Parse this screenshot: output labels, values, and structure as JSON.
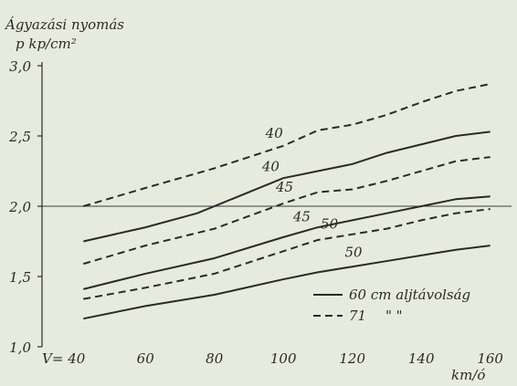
{
  "chart_data": {
    "type": "line",
    "ylabel_line1": "Ágyazási nyomás",
    "ylabel_line2": "p kp/cm²",
    "x_prefix": "V=",
    "xlabel": "km/ó",
    "xlim": [
      30,
      163
    ],
    "ylim": [
      1.0,
      3.0
    ],
    "x_ticks": [
      40,
      60,
      80,
      100,
      120,
      140,
      160
    ],
    "y_ticks": [
      "1,0",
      "1,5",
      "2,0",
      "2,5",
      "3,0"
    ],
    "y_tick_values": [
      1.0,
      1.5,
      2.0,
      2.5,
      3.0
    ],
    "reference_line_y": 2.0,
    "series": [
      {
        "label": "40",
        "style": "dashed",
        "x": [
          42,
          60,
          80,
          100,
          110,
          120,
          130,
          140,
          150,
          160
        ],
        "y": [
          2.0,
          2.13,
          2.27,
          2.43,
          2.54,
          2.58,
          2.65,
          2.74,
          2.82,
          2.87
        ]
      },
      {
        "label": "40",
        "style": "solid",
        "x": [
          42,
          60,
          75,
          90,
          100,
          110,
          120,
          130,
          140,
          150,
          160
        ],
        "y": [
          1.75,
          1.85,
          1.95,
          2.1,
          2.2,
          2.25,
          2.3,
          2.38,
          2.44,
          2.5,
          2.53
        ]
      },
      {
        "label": "45",
        "style": "dashed",
        "x": [
          42,
          60,
          80,
          100,
          110,
          120,
          130,
          140,
          150,
          160
        ],
        "y": [
          1.59,
          1.72,
          1.84,
          2.02,
          2.1,
          2.12,
          2.18,
          2.25,
          2.32,
          2.35
        ]
      },
      {
        "label": "45",
        "style": "solid",
        "x": [
          42,
          60,
          80,
          100,
          110,
          120,
          130,
          140,
          150,
          160
        ],
        "y": [
          1.41,
          1.52,
          1.63,
          1.78,
          1.85,
          1.9,
          1.95,
          2.0,
          2.05,
          2.07
        ]
      },
      {
        "label": "50",
        "style": "dashed",
        "x": [
          42,
          60,
          80,
          100,
          110,
          120,
          130,
          140,
          150,
          160
        ],
        "y": [
          1.34,
          1.42,
          1.52,
          1.68,
          1.76,
          1.8,
          1.84,
          1.9,
          1.95,
          1.98
        ]
      },
      {
        "label": "50",
        "style": "solid",
        "x": [
          42,
          60,
          80,
          100,
          110,
          120,
          130,
          140,
          150,
          160
        ],
        "y": [
          1.2,
          1.29,
          1.37,
          1.48,
          1.53,
          1.57,
          1.61,
          1.65,
          1.69,
          1.72
        ]
      }
    ],
    "legend": [
      {
        "style": "solid",
        "label": "60 cm aljtávolság"
      },
      {
        "style": "dashed",
        "label": "71",
        "ditto": "\"    \""
      }
    ]
  }
}
